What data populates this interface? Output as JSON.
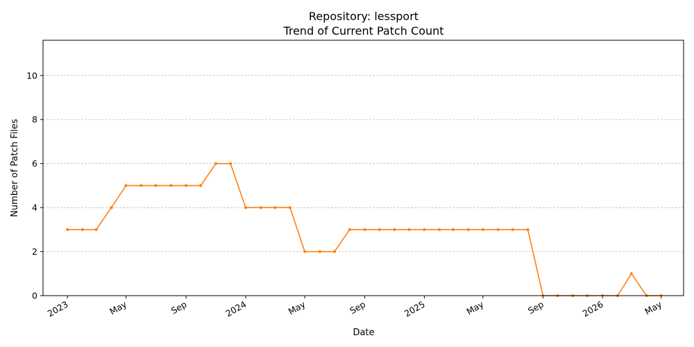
{
  "chart_data": {
    "type": "line",
    "title": "Repository: lessport",
    "subtitle": "Trend of Current Patch Count",
    "xlabel": "Date",
    "ylabel": "Number of Patch Files",
    "ylim": [
      0,
      11.6
    ],
    "yticks": [
      0,
      2,
      4,
      6,
      8,
      10
    ],
    "xlim": [
      "2022-11-12",
      "2026-06-16"
    ],
    "xticks": [
      {
        "date": "2023-01-01",
        "label": "2023"
      },
      {
        "date": "2023-05-01",
        "label": "May"
      },
      {
        "date": "2023-09-01",
        "label": "Sep"
      },
      {
        "date": "2024-01-01",
        "label": "2024"
      },
      {
        "date": "2024-05-01",
        "label": "May"
      },
      {
        "date": "2024-09-01",
        "label": "Sep"
      },
      {
        "date": "2025-01-01",
        "label": "2025"
      },
      {
        "date": "2025-05-01",
        "label": "May"
      },
      {
        "date": "2025-09-01",
        "label": "Sep"
      },
      {
        "date": "2026-01-01",
        "label": "2026"
      },
      {
        "date": "2026-05-01",
        "label": "May"
      }
    ],
    "grid": "y-dashed",
    "color": "#ff7f0e",
    "series": [
      {
        "x": [
          "2023-01-01",
          "2023-02-01",
          "2023-03-01",
          "2023-04-01",
          "2023-05-01",
          "2023-06-01",
          "2023-07-01",
          "2023-08-01",
          "2023-09-01",
          "2023-10-01",
          "2023-11-01",
          "2023-12-01",
          "2024-01-01",
          "2024-02-01",
          "2024-03-01",
          "2024-04-01",
          "2024-05-01",
          "2024-06-01",
          "2024-07-01",
          "2024-08-01",
          "2024-09-01",
          "2024-10-01",
          "2024-11-01",
          "2024-12-01",
          "2025-01-01",
          "2025-02-01",
          "2025-03-01",
          "2025-04-01",
          "2025-05-01",
          "2025-06-01",
          "2025-07-01",
          "2025-08-01",
          "2025-09-01",
          "2025-10-01",
          "2025-11-01",
          "2025-12-01",
          "2026-01-01",
          "2026-02-01",
          "2026-03-01",
          "2026-04-01",
          "2026-05-01"
        ],
        "values": [
          3,
          3,
          3,
          4,
          5,
          5,
          5,
          5,
          5,
          5,
          6,
          6,
          4,
          4,
          4,
          4,
          2,
          2,
          2,
          3,
          3,
          3,
          3,
          3,
          3,
          3,
          3,
          3,
          3,
          3,
          3,
          3,
          0,
          0,
          0,
          0,
          0,
          0,
          1,
          0,
          0
        ]
      }
    ]
  }
}
